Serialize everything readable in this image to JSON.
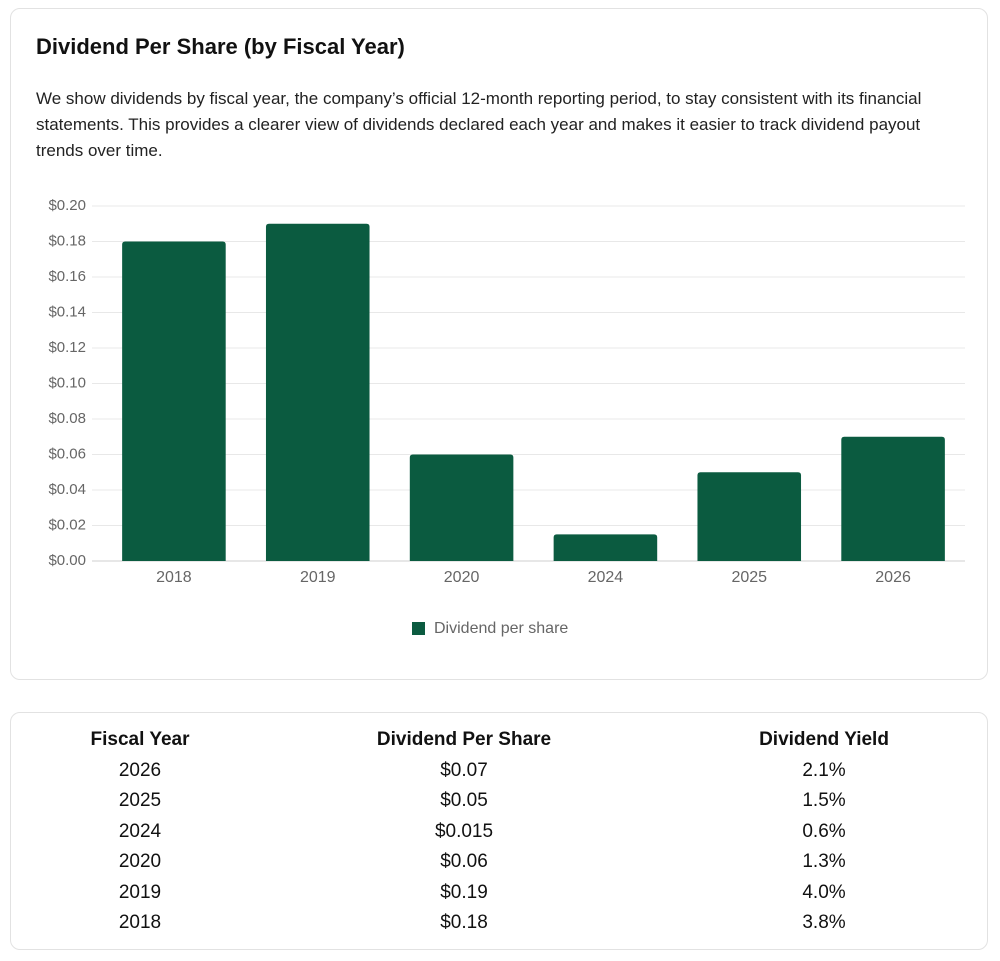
{
  "chart_data": {
    "type": "bar",
    "title": "Dividend Per Share (by Fiscal Year)",
    "subtitle": "We show dividends by fiscal year, the company’s official 12-month reporting period, to stay consistent with its financial statements. This provides a clearer view of dividends declared each year and makes it easier to track dividend payout trends over time.",
    "categories": [
      "2018",
      "2019",
      "2020",
      "2024",
      "2025",
      "2026"
    ],
    "series": [
      {
        "name": "Dividend per share",
        "color": "#0b5b40",
        "values": [
          0.18,
          0.19,
          0.06,
          0.015,
          0.05,
          0.07
        ]
      }
    ],
    "ylim": [
      0,
      0.2
    ],
    "yticks": [
      {
        "value": 0,
        "label": "$0.00"
      },
      {
        "value": 0.02,
        "label": "$0.02"
      },
      {
        "value": 0.04,
        "label": "$0.04"
      },
      {
        "value": 0.06,
        "label": "$0.06"
      },
      {
        "value": 0.08,
        "label": "$0.08"
      },
      {
        "value": 0.1,
        "label": "$0.10"
      },
      {
        "value": 0.12,
        "label": "$0.12"
      },
      {
        "value": 0.14,
        "label": "$0.14"
      },
      {
        "value": 0.16,
        "label": "$0.16"
      },
      {
        "value": 0.18,
        "label": "$0.18"
      },
      {
        "value": 0.2,
        "label": "$0.20"
      }
    ],
    "grid": true,
    "legend": "bottom"
  },
  "table": {
    "columns": [
      "Fiscal Year",
      "Dividend Per Share",
      "Dividend Yield"
    ],
    "rows": [
      [
        "2026",
        "$0.07",
        "2.1%"
      ],
      [
        "2025",
        "$0.05",
        "1.5%"
      ],
      [
        "2024",
        "$0.015",
        "0.6%"
      ],
      [
        "2020",
        "$0.06",
        "1.3%"
      ],
      [
        "2019",
        "$0.19",
        "4.0%"
      ],
      [
        "2018",
        "$0.18",
        "3.8%"
      ]
    ]
  }
}
